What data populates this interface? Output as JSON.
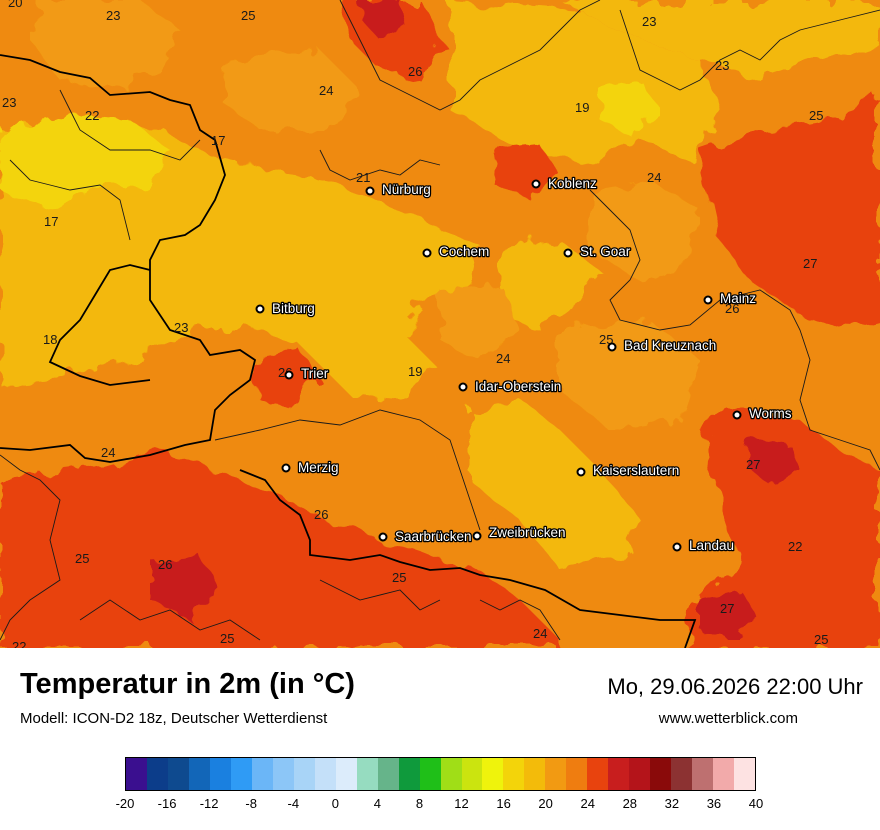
{
  "title": "Temperatur in 2m (in °C)",
  "model": "Modell: ICON-D2 18z, Deutscher Wetterdienst",
  "datetime": "Mo, 29.06.2026 22:00 Uhr",
  "website": "www.wetterblick.com",
  "cities": [
    {
      "name": "Nürburg"
    },
    {
      "name": "Koblenz"
    },
    {
      "name": "Cochem"
    },
    {
      "name": "St. Goar"
    },
    {
      "name": "Mainz"
    },
    {
      "name": "Bitburg"
    },
    {
      "name": "Bad Kreuznach"
    },
    {
      "name": "Trier"
    },
    {
      "name": "Idar-Oberstein"
    },
    {
      "name": "Worms"
    },
    {
      "name": "Merzig"
    },
    {
      "name": "Kaiserslautern"
    },
    {
      "name": "Saarbrücken"
    },
    {
      "name": "Zweibrücken"
    },
    {
      "name": "Landau"
    }
  ],
  "temperature_labels": [
    "20",
    "23",
    "25",
    "23",
    "26",
    "24",
    "23",
    "23",
    "22",
    "17",
    "19",
    "25",
    "21",
    "24",
    "17",
    "27",
    "26",
    "23",
    "25",
    "24",
    "18",
    "19",
    "26",
    "27",
    "24",
    "26",
    "22",
    "25",
    "26",
    "25",
    "27",
    "22",
    "25",
    "24",
    "25"
  ],
  "legend": {
    "unit": "°C",
    "colors": [
      "#3a0f8f",
      "#0c3d8a",
      "#0e4a8f",
      "#1266b8",
      "#1a80e0",
      "#2f9bf5",
      "#6bb6f7",
      "#8cc6f7",
      "#a8d4f7",
      "#c4e0f9",
      "#dcecfb",
      "#96dcc0",
      "#66b48a",
      "#0f9a3c",
      "#1fbf18",
      "#a0de17",
      "#cbe40f",
      "#eff30c",
      "#f3d40a",
      "#f3bb0a",
      "#f29a12",
      "#ef7d10",
      "#e8430e",
      "#c81e1e",
      "#b4141a",
      "#8a0a0a",
      "#8c3232",
      "#be7070",
      "#f2aaaa",
      "#fde2e2"
    ],
    "ticks": [
      "-20",
      "-16",
      "-12",
      "-8",
      "-4",
      "0",
      "4",
      "8",
      "12",
      "16",
      "20",
      "24",
      "28",
      "32",
      "36",
      "40"
    ]
  }
}
